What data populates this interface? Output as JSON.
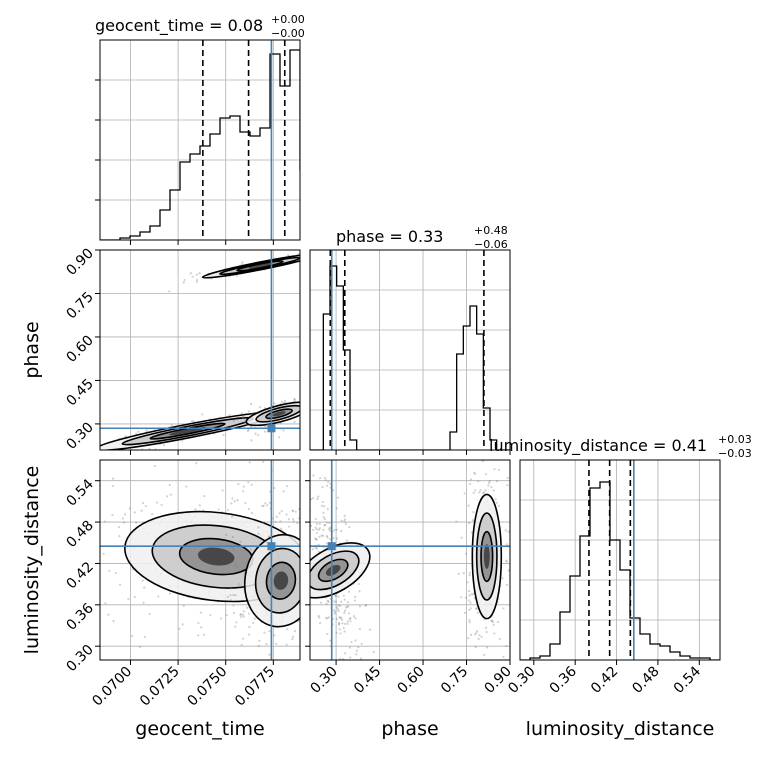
{
  "chart_data": {
    "type": "corner",
    "parameters": [
      "geocent_time",
      "phase",
      "luminosity_distance"
    ],
    "titles": [
      {
        "label": "geocent_time = 0.08",
        "sup": "+0.00",
        "sub": "−0.00"
      },
      {
        "label": "phase = 0.33",
        "sup": "+0.48",
        "sub": "−0.06"
      },
      {
        "label": "luminosity_distance = 0.41",
        "sup": "+0.03",
        "sub": "−0.03"
      }
    ],
    "axis_labels": {
      "x": [
        "geocent_time",
        "phase",
        "luminosity_distance"
      ],
      "y": [
        "phase",
        "luminosity_distance"
      ]
    },
    "ranges": {
      "geocent_time": [
        0.0684,
        0.0789
      ],
      "phase": [
        0.21,
        0.9
      ],
      "luminosity_distance": [
        0.28,
        0.57
      ]
    },
    "ticks": {
      "geocent_time": [
        0.07,
        0.0725,
        0.075,
        0.0775
      ],
      "phase": [
        0.3,
        0.45,
        0.6,
        0.75,
        0.9
      ],
      "luminosity_distance": [
        0.3,
        0.36,
        0.42,
        0.48,
        0.54
      ]
    },
    "tick_labels": {
      "geocent_time": [
        "0.0700",
        "0.0725",
        "0.0750",
        "0.0775"
      ],
      "phase": [
        "0.30",
        "0.45",
        "0.60",
        "0.75",
        "0.90"
      ],
      "luminosity_distance": [
        "0.30",
        "0.36",
        "0.42",
        "0.48",
        "0.54"
      ]
    },
    "injection": {
      "geocent_time": 0.0774,
      "phase": 0.285,
      "luminosity_distance": 0.445
    },
    "quantiles": {
      "geocent_time": [
        0.0738,
        0.0762,
        0.0781
      ],
      "phase": [
        0.28,
        0.33,
        0.81
      ],
      "luminosity_distance": [
        0.38,
        0.41,
        0.44
      ]
    },
    "histograms": {
      "geocent_time": {
        "bin_start": 0.0684,
        "bin_width": 0.000525,
        "counts": [
          0,
          0,
          0.01,
          0.02,
          0.04,
          0.07,
          0.15,
          0.25,
          0.39,
          0.43,
          0.47,
          0.53,
          0.61,
          0.62,
          0.54,
          0.52,
          0.56,
          0.93,
          0.77,
          0.95,
          0.35
        ]
      },
      "phase": {
        "bin_start": 0.21,
        "bin_width": 0.023,
        "counts": [
          0,
          0,
          0.68,
          0.92,
          0.82,
          0.5,
          0.05,
          0,
          0,
          0,
          0,
          0,
          0,
          0,
          0,
          0,
          0,
          0,
          0,
          0,
          0,
          0.09,
          0.48,
          0.62,
          0.72,
          0.58,
          0.21,
          0.05,
          0,
          0
        ]
      },
      "luminosity_distance": {
        "bin_start": 0.28,
        "bin_width": 0.0145,
        "counts": [
          0,
          0.01,
          0.02,
          0.08,
          0.24,
          0.42,
          0.62,
          0.86,
          0.89,
          0.6,
          0.45,
          0.21,
          0.13,
          0.08,
          0.07,
          0.04,
          0.02,
          0.01,
          0.01,
          0
        ]
      }
    },
    "grid": true,
    "colors": {
      "injection": "#4682b4",
      "contour": "#000000",
      "hist": "#000000",
      "grid": "#b0b0b0",
      "points": "#7a7a7a"
    }
  }
}
